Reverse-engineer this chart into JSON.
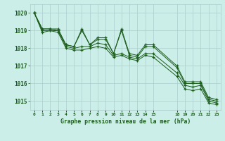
{
  "background_color": "#cceee8",
  "grid_color": "#aacccc",
  "line_color": "#1a5c1a",
  "marker_color": "#1a5c1a",
  "title": "Graphe pression niveau de la mer (hPa)",
  "title_color": "#1a5c1a",
  "xlim": [
    -0.5,
    23.5
  ],
  "ylim": [
    1014.5,
    1020.5
  ],
  "yticks": [
    1015,
    1016,
    1017,
    1018,
    1019,
    1020
  ],
  "xtick_positions": [
    0,
    1,
    2,
    3,
    4,
    5,
    6,
    7,
    8,
    9,
    10,
    11,
    12,
    13,
    14,
    15,
    18,
    19,
    20,
    21,
    22,
    23
  ],
  "xtick_labels": [
    "0",
    "1",
    "2",
    "3",
    "4",
    "5",
    "6",
    "7",
    "8",
    "9",
    "10",
    "11",
    "12",
    "13",
    "14",
    "15",
    "18",
    "19",
    "20",
    "21",
    "22",
    "23"
  ],
  "series": [
    [
      1020.0,
      1019.1,
      1019.1,
      1019.1,
      1018.2,
      1018.1,
      1019.1,
      1018.2,
      1018.6,
      1018.6,
      1017.7,
      1019.1,
      1017.7,
      1017.6,
      1018.2,
      1018.2,
      1017.0,
      1016.1,
      1016.1,
      1016.1,
      1015.2,
      1015.1
    ],
    [
      1020.0,
      1019.1,
      1019.1,
      1019.0,
      1018.2,
      1018.1,
      1019.0,
      1018.2,
      1018.5,
      1018.5,
      1017.7,
      1019.0,
      1017.6,
      1017.5,
      1018.1,
      1018.1,
      1016.9,
      1016.0,
      1016.0,
      1016.0,
      1015.1,
      1015.0
    ],
    [
      1020.0,
      1019.0,
      1019.0,
      1019.0,
      1018.1,
      1018.0,
      1018.1,
      1018.1,
      1018.3,
      1018.2,
      1017.6,
      1017.7,
      1017.5,
      1017.4,
      1017.7,
      1017.7,
      1016.6,
      1015.9,
      1015.8,
      1015.9,
      1015.0,
      1014.9
    ],
    [
      1020.0,
      1018.9,
      1019.0,
      1018.9,
      1018.0,
      1017.9,
      1017.9,
      1018.0,
      1018.1,
      1018.0,
      1017.5,
      1017.6,
      1017.4,
      1017.3,
      1017.6,
      1017.5,
      1016.4,
      1015.7,
      1015.6,
      1015.7,
      1014.9,
      1014.8
    ]
  ]
}
